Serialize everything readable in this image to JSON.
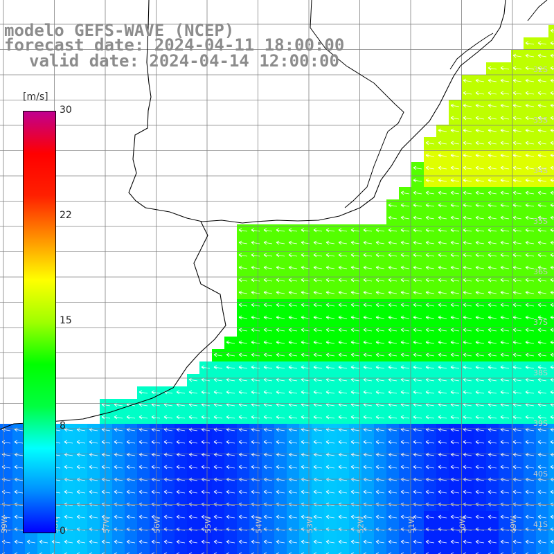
{
  "header": {
    "model": "modelo GEFS-WAVE (NCEP)",
    "forecast": "forecast date: 2024-04-11 18:00:00",
    "valid": "valid date: 2024-04-14 12:00:00"
  },
  "colorbar": {
    "unit": "[m/s]",
    "ticks": [
      "30",
      "22",
      "15",
      "8",
      "0"
    ],
    "tick_values": [
      30,
      22,
      15,
      8,
      0
    ],
    "range": [
      0,
      30
    ],
    "colors": [
      "#0000ff",
      "#0090ff",
      "#00ffff",
      "#00ff40",
      "#00ff00",
      "#a0ff00",
      "#ffff00",
      "#ff9000",
      "#ff2000",
      "#ff0000",
      "#c00090"
    ]
  },
  "map": {
    "lat_labels": [
      "32S",
      "33S",
      "34S",
      "35S",
      "36S",
      "37S",
      "38S",
      "39S",
      "40S",
      "41S"
    ],
    "lon_labels": [
      "59W",
      "58W",
      "57W",
      "56W",
      "55W",
      "54W",
      "53W",
      "52W",
      "51W",
      "50W",
      "49W"
    ],
    "wind_direction": "from east (arrows point west)",
    "land_color": "#ffffff",
    "grid_color": "#808080",
    "coast_color": "#000000"
  }
}
